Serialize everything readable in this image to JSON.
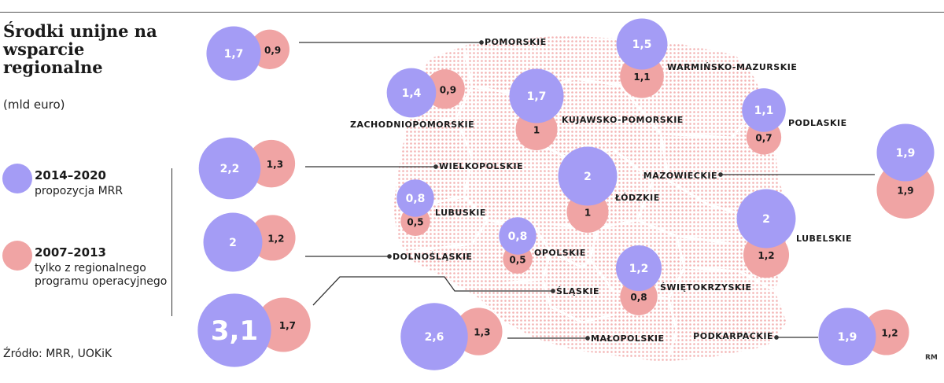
{
  "title": "Środki unijne na wsparcie regionalne",
  "unit": "(mld euro)",
  "legend": {
    "new": {
      "period": "2014–2020",
      "desc": "propozycja MRR",
      "color": "#a49cf5"
    },
    "old": {
      "period": "2007–2013",
      "desc": "tylko z regionalnego programu operacyjnego",
      "color": "#f0a4a4"
    }
  },
  "source": "Źródło: MRR, UOKiK",
  "credit": "RM",
  "colors": {
    "map_dots": "#f3b3b3",
    "line": "#333333",
    "label": "#1a1a1a"
  },
  "regions": [
    {
      "name": "POMORSKIE",
      "v2014": "1,7",
      "v2007": "0,9",
      "n": 1.7,
      "o": 0.9
    },
    {
      "name": "WARMIŃSKO-MAZURSKIE",
      "v2014": "1,5",
      "v2007": "1,1",
      "n": 1.5,
      "o": 1.1
    },
    {
      "name": "ZACHODNIOPOMORSKIE",
      "v2014": "1,4",
      "v2007": "0,9",
      "n": 1.4,
      "o": 0.9
    },
    {
      "name": "KUJAWSKO-POMORSKIE",
      "v2014": "1,7",
      "v2007": "1",
      "n": 1.7,
      "o": 1.0
    },
    {
      "name": "PODLASKIE",
      "v2014": "1,1",
      "v2007": "0,7",
      "n": 1.1,
      "o": 0.7
    },
    {
      "name": "WIELKOPOLSKIE",
      "v2014": "2,2",
      "v2007": "1,3",
      "n": 2.2,
      "o": 1.3
    },
    {
      "name": "MAZOWIECKIE",
      "v2014": "1,9",
      "v2007": "1,9",
      "n": 1.9,
      "o": 1.9
    },
    {
      "name": "ŁÓDZKIE",
      "v2014": "2",
      "v2007": "1",
      "n": 2.0,
      "o": 1.0
    },
    {
      "name": "LUBUSKIE",
      "v2014": "0,8",
      "v2007": "0,5",
      "n": 0.8,
      "o": 0.5
    },
    {
      "name": "LUBELSKIE",
      "v2014": "2",
      "v2007": "1,2",
      "n": 2.0,
      "o": 1.2
    },
    {
      "name": "DOLNOŚLĄSKIE",
      "v2014": "2",
      "v2007": "1,2",
      "n": 2.0,
      "o": 1.2
    },
    {
      "name": "OPOLSKIE",
      "v2014": "0,8",
      "v2007": "0,5",
      "n": 0.8,
      "o": 0.5
    },
    {
      "name": "ŚWIĘTOKRZYSKIE",
      "v2014": "1,2",
      "v2007": "0,8",
      "n": 1.2,
      "o": 0.8
    },
    {
      "name": "ŚLĄSKIE",
      "v2014": "3,1",
      "v2007": "1,7",
      "n": 3.1,
      "o": 1.7
    },
    {
      "name": "MAŁOPOLSKIE",
      "v2014": "2,6",
      "v2007": "1,3",
      "n": 2.6,
      "o": 1.3
    },
    {
      "name": "PODKARPACKIE",
      "v2014": "1,9",
      "v2007": "1,2",
      "n": 1.9,
      "o": 1.2
    }
  ]
}
